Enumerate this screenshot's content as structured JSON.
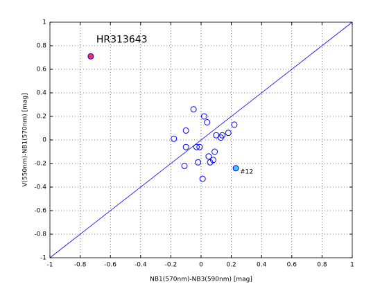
{
  "chart_data": {
    "type": "scatter",
    "xlabel": "NB1(570nm)-NB3(590nm) [mag]",
    "ylabel": "V(550nm)-NB1(570nm) [mag]",
    "xlim": [
      -1,
      1
    ],
    "ylim": [
      -1,
      1
    ],
    "xticks": [
      -1,
      -0.8,
      -0.6,
      -0.4,
      -0.2,
      0,
      0.2,
      0.4,
      0.6,
      0.8,
      1
    ],
    "yticks": [
      -1,
      -0.8,
      -0.6,
      -0.4,
      -0.2,
      0,
      0.2,
      0.4,
      0.6,
      0.8,
      1
    ],
    "grid": true,
    "reference_line": {
      "x": [
        -1,
        1
      ],
      "y": [
        -1,
        1
      ],
      "color": "#0000ff"
    },
    "series": [
      {
        "edge_color": "#0000ff",
        "x": [
          -0.18,
          -0.05,
          0.02,
          0.04,
          -0.1,
          -0.1,
          -0.03,
          -0.01,
          -0.11,
          -0.02,
          0.01,
          0.05,
          0.06,
          0.09,
          0.08,
          0.1,
          0.13,
          0.14,
          0.18,
          0.22
        ],
        "values": [
          0.01,
          0.26,
          0.2,
          0.15,
          0.08,
          -0.06,
          -0.06,
          -0.06,
          -0.22,
          -0.19,
          -0.33,
          -0.14,
          -0.19,
          -0.1,
          -0.17,
          0.04,
          0.02,
          0.04,
          0.06,
          0.13
        ]
      },
      {
        "name": "HR313643",
        "edge_color": "#0000ff",
        "color": "#ff3050",
        "label_position": "above",
        "x": [
          -0.73
        ],
        "values": [
          0.71
        ]
      },
      {
        "name": "#12",
        "edge_color": "#0000ff",
        "color": "#40c8f0",
        "label_position": "right",
        "x": [
          0.23
        ],
        "values": [
          -0.24
        ]
      }
    ]
  }
}
